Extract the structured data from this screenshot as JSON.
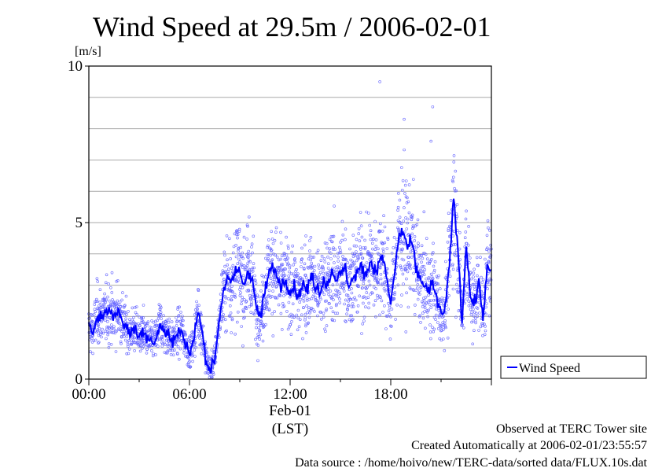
{
  "chart_data": {
    "type": "scatter",
    "title": "Wind Speed at 29.5m / 2006-02-01",
    "ylabel": "[m/s]",
    "xlabel": "(LST)",
    "date_label": "Feb-01",
    "x_range": [
      "00:00",
      "24:00"
    ],
    "ylim": [
      0,
      10
    ],
    "y_ticks": [
      {
        "value": 0,
        "label": "0"
      },
      {
        "value": 5,
        "label": "5"
      },
      {
        "value": 10,
        "label": "10"
      }
    ],
    "y_gridlines": [
      1,
      2,
      3,
      4,
      5,
      6,
      7,
      8,
      9
    ],
    "x_ticks": [
      {
        "hour": 0,
        "label": "00:00"
      },
      {
        "hour": 6,
        "label": "06:00"
      },
      {
        "hour": 12,
        "label": "12:00"
      },
      {
        "hour": 18,
        "label": "18:00"
      }
    ],
    "grid": "horizontal",
    "legend_position": "right",
    "series": [
      {
        "name": "Wind Speed",
        "color": "#0000ff",
        "markers": "small open circles (10 s samples)",
        "line_profile": [
          [
            0.0,
            1.6
          ],
          [
            0.25,
            1.5
          ],
          [
            0.5,
            2.1
          ],
          [
            0.75,
            2.0
          ],
          [
            1.0,
            2.1
          ],
          [
            1.25,
            2.2
          ],
          [
            1.5,
            2.0
          ],
          [
            1.75,
            2.2
          ],
          [
            2.0,
            1.9
          ],
          [
            2.25,
            1.6
          ],
          [
            2.5,
            1.5
          ],
          [
            2.75,
            1.6
          ],
          [
            3.0,
            1.4
          ],
          [
            3.25,
            1.5
          ],
          [
            3.5,
            1.3
          ],
          [
            3.75,
            1.2
          ],
          [
            4.0,
            1.3
          ],
          [
            4.25,
            1.8
          ],
          [
            4.5,
            1.5
          ],
          [
            4.75,
            1.4
          ],
          [
            5.0,
            1.2
          ],
          [
            5.25,
            1.4
          ],
          [
            5.5,
            1.6
          ],
          [
            5.75,
            1.2
          ],
          [
            6.0,
            0.8
          ],
          [
            6.25,
            1.2
          ],
          [
            6.5,
            2.2
          ],
          [
            6.75,
            1.5
          ],
          [
            7.0,
            0.6
          ],
          [
            7.25,
            0.3
          ],
          [
            7.5,
            0.6
          ],
          [
            7.75,
            1.8
          ],
          [
            8.0,
            2.8
          ],
          [
            8.25,
            3.2
          ],
          [
            8.5,
            3.0
          ],
          [
            8.75,
            3.5
          ],
          [
            9.0,
            3.4
          ],
          [
            9.25,
            3.0
          ],
          [
            9.5,
            3.5
          ],
          [
            9.75,
            3.2
          ],
          [
            10.0,
            2.2
          ],
          [
            10.25,
            2.0
          ],
          [
            10.5,
            2.8
          ],
          [
            10.75,
            3.4
          ],
          [
            11.0,
            3.6
          ],
          [
            11.25,
            3.2
          ],
          [
            11.5,
            3.0
          ],
          [
            11.75,
            3.2
          ],
          [
            12.0,
            2.8
          ],
          [
            12.25,
            3.0
          ],
          [
            12.5,
            2.6
          ],
          [
            12.75,
            3.1
          ],
          [
            13.0,
            2.8
          ],
          [
            13.25,
            3.3
          ],
          [
            13.5,
            3.0
          ],
          [
            13.75,
            2.8
          ],
          [
            14.0,
            3.2
          ],
          [
            14.25,
            3.0
          ],
          [
            14.5,
            3.5
          ],
          [
            14.75,
            3.2
          ],
          [
            15.0,
            3.3
          ],
          [
            15.25,
            3.6
          ],
          [
            15.5,
            3.0
          ],
          [
            15.75,
            3.2
          ],
          [
            16.0,
            3.4
          ],
          [
            16.25,
            3.6
          ],
          [
            16.5,
            3.3
          ],
          [
            16.75,
            3.8
          ],
          [
            17.0,
            3.5
          ],
          [
            17.25,
            3.6
          ],
          [
            17.5,
            4.0
          ],
          [
            17.75,
            3.2
          ],
          [
            18.0,
            2.4
          ],
          [
            18.25,
            3.5
          ],
          [
            18.5,
            4.6
          ],
          [
            18.75,
            4.7
          ],
          [
            19.0,
            4.2
          ],
          [
            19.25,
            4.4
          ],
          [
            19.5,
            3.5
          ],
          [
            19.75,
            3.2
          ],
          [
            20.0,
            3.0
          ],
          [
            20.25,
            2.8
          ],
          [
            20.5,
            3.0
          ],
          [
            20.75,
            2.6
          ],
          [
            21.0,
            2.0
          ],
          [
            21.25,
            2.3
          ],
          [
            21.5,
            3.6
          ],
          [
            21.75,
            5.8
          ],
          [
            22.0,
            4.2
          ],
          [
            22.25,
            1.8
          ],
          [
            22.5,
            4.4
          ],
          [
            22.75,
            2.6
          ],
          [
            23.0,
            2.4
          ],
          [
            23.25,
            3.1
          ],
          [
            23.5,
            2.0
          ],
          [
            23.75,
            3.5
          ],
          [
            24.0,
            3.4
          ]
        ],
        "notable_points": [
          [
            17.35,
            9.5
          ],
          [
            20.5,
            8.7
          ],
          [
            20.4,
            7.6
          ],
          [
            18.8,
            8.3
          ]
        ]
      }
    ]
  },
  "notes": {
    "observed": "Observed at TERC Tower site",
    "created": "Created Automatically at 2006-02-01/23:55:57",
    "source": "Data source : /home/hoivo/new/TERC-data/sorted  data/FLUX.10s.dat"
  },
  "colors": {
    "series": "#0000ff",
    "markers": "#6666ff",
    "grid": "#a9a9a9",
    "axis": "#000000"
  }
}
